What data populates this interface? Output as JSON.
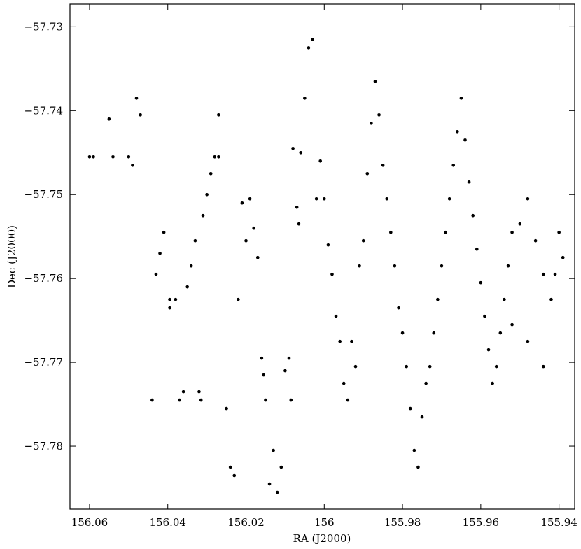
{
  "chart_data": {
    "type": "scatter",
    "title": "",
    "xlabel": "RA (J2000)",
    "ylabel": "Dec (J2000)",
    "x_axis_reversed": true,
    "xlim": [
      156.065,
      155.936
    ],
    "ylim": [
      -57.7875,
      -57.7273
    ],
    "x_ticks": [
      156.06,
      156.04,
      156.02,
      156.0,
      155.98,
      155.96,
      155.94
    ],
    "x_tick_labels": [
      "156.06",
      "156.04",
      "156.02",
      "156",
      "155.98",
      "155.96",
      "155.94"
    ],
    "y_ticks": [
      -57.73,
      -57.74,
      -57.75,
      -57.76,
      -57.77,
      -57.78
    ],
    "y_tick_labels": [
      "−57.73",
      "−57.74",
      "−57.75",
      "−57.76",
      "−57.77",
      "−57.78"
    ],
    "grid": false,
    "legend": "none",
    "marker_color": "#000000",
    "series": [
      {
        "x": [
          156.06,
          156.059,
          156.055,
          156.054,
          156.05,
          156.049,
          156.048,
          156.047,
          156.044,
          156.043,
          156.042,
          156.041,
          156.0395,
          156.0395,
          156.038,
          156.037,
          156.036,
          156.035,
          156.034,
          156.033,
          156.032,
          156.0315,
          156.031,
          156.03,
          156.029,
          156.028,
          156.027,
          156.027,
          156.025,
          156.024,
          156.023,
          156.022,
          156.021,
          156.02,
          156.019,
          156.018,
          156.017,
          156.016,
          156.0155,
          156.015,
          156.014,
          156.013,
          156.012,
          156.011,
          156.01,
          156.009,
          156.0085,
          156.008,
          156.007,
          156.0065,
          156.006,
          156.005,
          156.004,
          156.003,
          156.002,
          156.001,
          156.0,
          155.999,
          155.998,
          155.997,
          155.996,
          155.995,
          155.994,
          155.993,
          155.992,
          155.991,
          155.99,
          155.989,
          155.988,
          155.987,
          155.986,
          155.985,
          155.984,
          155.983,
          155.982,
          155.981,
          155.98,
          155.979,
          155.978,
          155.977,
          155.976,
          155.975,
          155.974,
          155.973,
          155.972,
          155.971,
          155.97,
          155.969,
          155.968,
          155.967,
          155.966,
          155.965,
          155.964,
          155.963,
          155.962,
          155.961,
          155.96,
          155.959,
          155.958,
          155.957,
          155.956,
          155.955,
          155.954,
          155.953,
          155.952,
          155.95,
          155.948,
          155.946,
          155.944,
          155.942,
          155.94,
          155.939,
          155.952,
          155.948,
          155.944,
          155.941
        ],
        "y": [
          -57.7455,
          -57.7455,
          -57.741,
          -57.7455,
          -57.7455,
          -57.7465,
          -57.7385,
          -57.7405,
          -57.7745,
          -57.7595,
          -57.757,
          -57.7545,
          -57.7625,
          -57.7635,
          -57.7625,
          -57.7745,
          -57.7735,
          -57.761,
          -57.7585,
          -57.7555,
          -57.7735,
          -57.7745,
          -57.7525,
          -57.75,
          -57.7475,
          -57.7455,
          -57.7405,
          -57.7455,
          -57.7755,
          -57.7825,
          -57.7835,
          -57.7625,
          -57.751,
          -57.7555,
          -57.7505,
          -57.754,
          -57.7575,
          -57.7695,
          -57.7715,
          -57.7745,
          -57.7845,
          -57.7805,
          -57.7855,
          -57.7825,
          -57.771,
          -57.7695,
          -57.7745,
          -57.7445,
          -57.7515,
          -57.7535,
          -57.745,
          -57.7385,
          -57.7325,
          -57.7315,
          -57.7505,
          -57.746,
          -57.7505,
          -57.756,
          -57.7595,
          -57.7645,
          -57.7675,
          -57.7725,
          -57.7745,
          -57.7675,
          -57.7705,
          -57.7585,
          -57.7555,
          -57.7475,
          -57.7415,
          -57.7365,
          -57.7405,
          -57.7465,
          -57.7505,
          -57.7545,
          -57.7585,
          -57.7635,
          -57.7665,
          -57.7705,
          -57.7755,
          -57.7805,
          -57.7825,
          -57.7765,
          -57.7725,
          -57.7705,
          -57.7665,
          -57.7625,
          -57.7585,
          -57.7545,
          -57.7505,
          -57.7465,
          -57.7425,
          -57.7385,
          -57.7435,
          -57.7485,
          -57.7525,
          -57.7565,
          -57.7605,
          -57.7645,
          -57.7685,
          -57.7725,
          -57.7705,
          -57.7665,
          -57.7625,
          -57.7585,
          -57.7545,
          -57.7535,
          -57.7505,
          -57.7555,
          -57.7595,
          -57.7625,
          -57.7545,
          -57.7575,
          -57.7655,
          -57.7675,
          -57.7705,
          -57.7595
        ],
        "name": ""
      }
    ]
  }
}
